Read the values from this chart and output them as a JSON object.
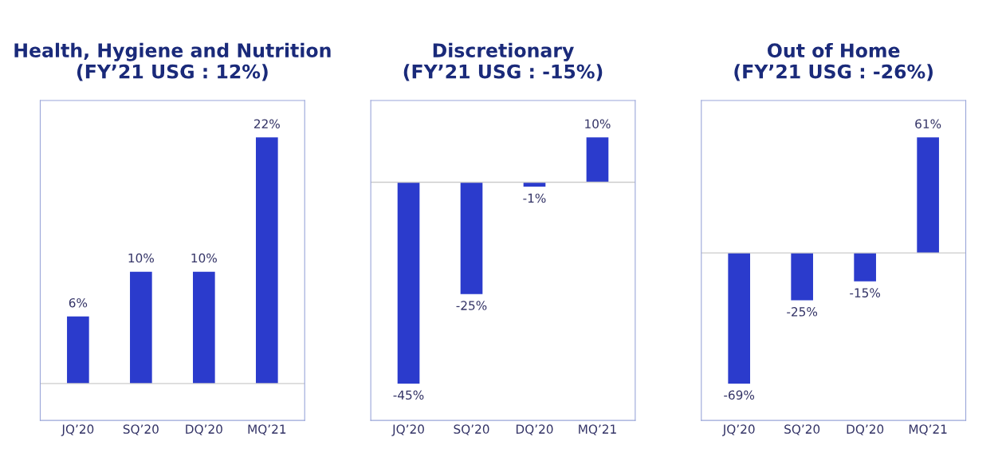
{
  "chart_data": [
    {
      "type": "bar",
      "title": "Health, Hygiene and Nutrition\n(FY’21 USG : 12%)",
      "categories": [
        "JQ’20",
        "SQ’20",
        "DQ’20",
        "MQ’21"
      ],
      "tick_labels": "x",
      "series": [
        {
          "color": "#2b3bcc",
          "values": [
            6,
            10,
            10,
            22
          ],
          "value_labels": [
            "6%",
            "10%",
            "10%",
            "22%"
          ]
        }
      ]
    },
    {
      "type": "bar",
      "title": "Discretionary\n(FY’21 USG : -15%)",
      "categories": [
        "JQ’20",
        "SQ’20",
        "DQ’20",
        "MQ’21"
      ],
      "tick_labels": "x",
      "series": [
        {
          "color": "#2b3bcc",
          "values": [
            -45,
            -25,
            -1,
            10
          ],
          "value_labels": [
            "-45%",
            "-25%",
            "-1%",
            "10%"
          ]
        }
      ]
    },
    {
      "type": "bar",
      "title": "Out of Home\n(FY’21 USG : -26%)",
      "categories": [
        "JQ’20",
        "SQ’20",
        "DQ’20",
        "MQ’21"
      ],
      "tick_labels": "x",
      "series": [
        {
          "color": "#2b3bcc",
          "values": [
            -69,
            -25,
            -15,
            61
          ],
          "value_labels": [
            "-69%",
            "-25%",
            "-15%",
            "61%"
          ]
        }
      ]
    }
  ]
}
